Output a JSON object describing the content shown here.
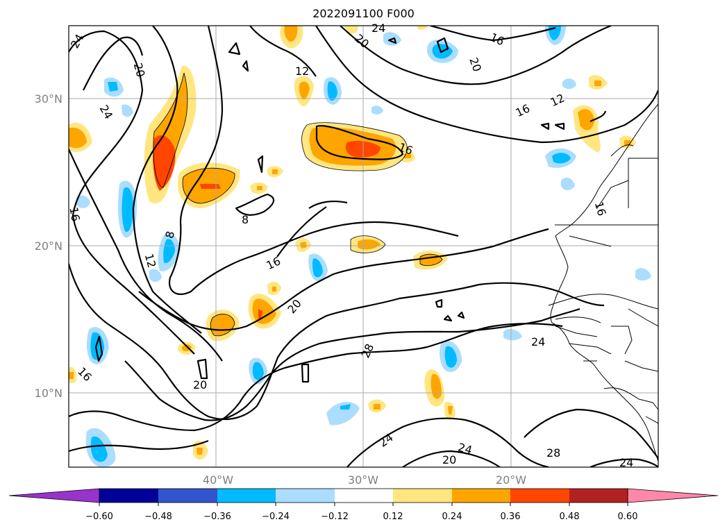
{
  "title": "2022091100 F000",
  "map": {
    "lat_labels": [
      "30°N",
      "20°N",
      "10°N"
    ],
    "lon_labels": [
      "40°W",
      "30°W",
      "20°W"
    ],
    "contour_labels": [
      "24",
      "20",
      "24",
      "20",
      "16",
      "12",
      "24",
      "20",
      "16",
      "12",
      "16",
      "8",
      "8",
      "12",
      "16",
      "20",
      "16",
      "16",
      "20",
      "28",
      "24",
      "24",
      "20",
      "24",
      "28",
      "24",
      "16"
    ]
  },
  "colorbar": {
    "ticks": [
      "−0.60",
      "−0.48",
      "−0.36",
      "−0.24",
      "−0.12",
      "0.12",
      "0.24",
      "0.36",
      "0.48",
      "0.60"
    ],
    "colors": [
      "#9933cc",
      "#000099",
      "#3355cc",
      "#00bbff",
      "#aaddff",
      "#ffffff",
      "#ffe680",
      "#ffa500",
      "#ff4500",
      "#b22222",
      "#ff88aa"
    ]
  },
  "chart_data": {
    "type": "heatmap",
    "title": "2022091100 F000",
    "x_ticks": [
      "40°W",
      "30°W",
      "20°W"
    ],
    "y_ticks": [
      "30°N",
      "20°N",
      "10°N"
    ],
    "xlim": [
      -50,
      -10
    ],
    "ylim": [
      5,
      35
    ],
    "levels": [
      -0.6,
      -0.48,
      -0.36,
      -0.24,
      -0.12,
      0.12,
      0.24,
      0.36,
      0.48,
      0.6
    ],
    "contour_levels_labeled": [
      8,
      12,
      16,
      20,
      24,
      28
    ]
  }
}
